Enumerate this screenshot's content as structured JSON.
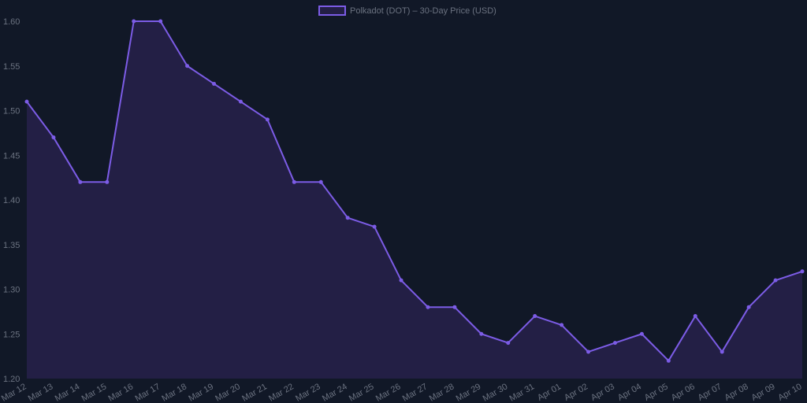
{
  "chart_data": {
    "type": "area",
    "title": "",
    "legend": {
      "label": "Polkadot (DOT) – 30-Day Price (USD)",
      "placement": "top"
    },
    "xlabel": "",
    "ylabel": "",
    "ylim": [
      1.2,
      1.6
    ],
    "yticks": [
      "1.20",
      "1.25",
      "1.30",
      "1.35",
      "1.40",
      "1.45",
      "1.50",
      "1.55",
      "1.60"
    ],
    "grid": false,
    "colors": {
      "line": "#7c5ce6",
      "fill": "#231f45",
      "background": "#111827",
      "text": "#6b7280"
    },
    "categories": [
      "Mar 12",
      "Mar 13",
      "Mar 14",
      "Mar 15",
      "Mar 16",
      "Mar 17",
      "Mar 18",
      "Mar 19",
      "Mar 20",
      "Mar 21",
      "Mar 22",
      "Mar 23",
      "Mar 24",
      "Mar 25",
      "Mar 26",
      "Mar 27",
      "Mar 28",
      "Mar 29",
      "Mar 30",
      "Mar 31",
      "Apr 01",
      "Apr 02",
      "Apr 03",
      "Apr 04",
      "Apr 05",
      "Apr 06",
      "Apr 07",
      "Apr 08",
      "Apr 09",
      "Apr 10"
    ],
    "series": [
      {
        "name": "Polkadot (DOT) – 30-Day Price (USD)",
        "values": [
          1.51,
          1.47,
          1.42,
          1.42,
          1.6,
          1.6,
          1.55,
          1.53,
          1.51,
          1.49,
          1.42,
          1.42,
          1.38,
          1.37,
          1.31,
          1.28,
          1.28,
          1.25,
          1.24,
          1.27,
          1.26,
          1.23,
          1.24,
          1.25,
          1.22,
          1.27,
          1.23,
          1.28,
          1.31,
          1.32
        ]
      }
    ]
  }
}
